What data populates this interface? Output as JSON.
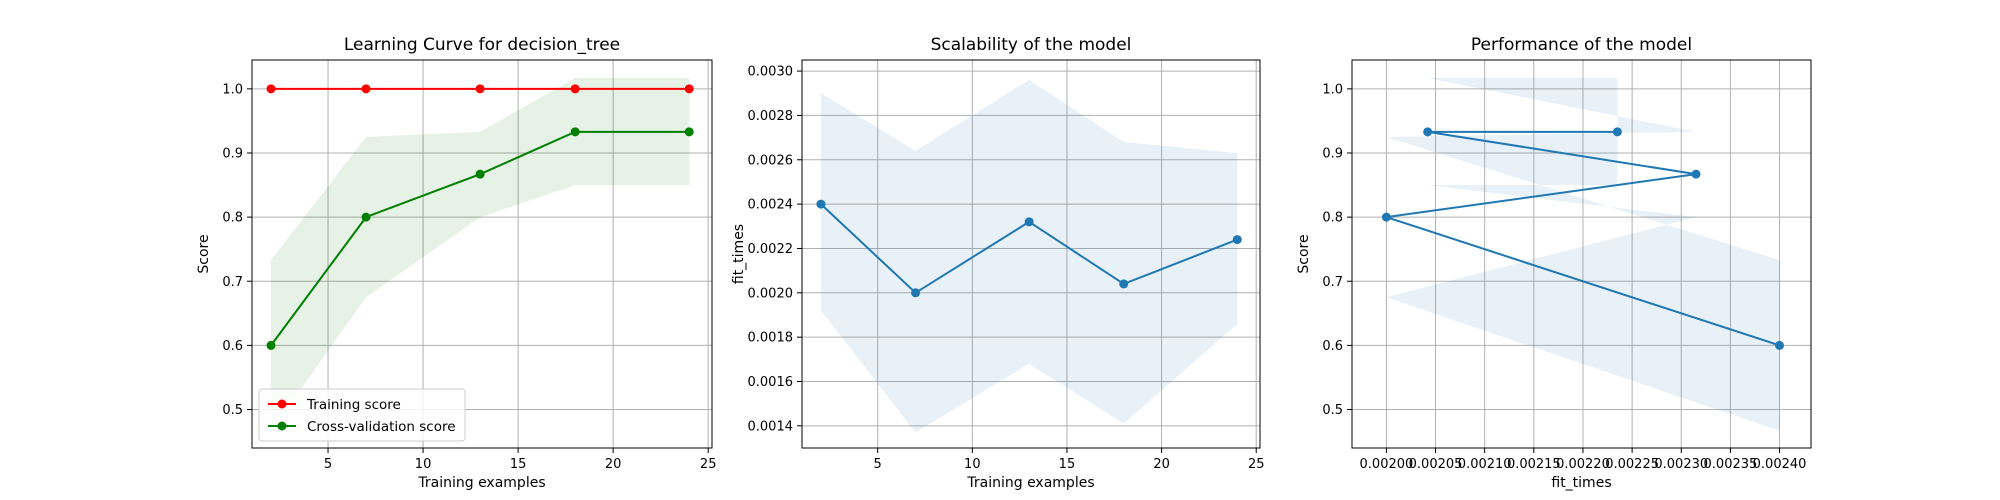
{
  "chart_data": [
    {
      "type": "line",
      "title": "Learning Curve for decision_tree",
      "xlabel": "Training examples",
      "ylabel": "Score",
      "xlim": [
        1,
        25.2
      ],
      "ylim": [
        0.44,
        1.045
      ],
      "xticks": [
        5,
        10,
        15,
        20,
        25
      ],
      "yticks": [
        0.5,
        0.6,
        0.7,
        0.8,
        0.9,
        1.0
      ],
      "grid": true,
      "legend": "lower-left",
      "series": [
        {
          "name": "Training score",
          "color": "#ff0000",
          "x": [
            2,
            7,
            13,
            18,
            24
          ],
          "y": [
            1.0,
            1.0,
            1.0,
            1.0,
            1.0
          ],
          "band_low": [
            1.0,
            1.0,
            1.0,
            1.0,
            1.0
          ],
          "band_high": [
            1.0,
            1.0,
            1.0,
            1.0,
            1.0
          ]
        },
        {
          "name": "Cross-validation score",
          "color": "#008000",
          "x": [
            2,
            7,
            13,
            18,
            24
          ],
          "y": [
            0.6,
            0.8,
            0.867,
            0.933,
            0.933
          ],
          "band_low": [
            0.467,
            0.675,
            0.8,
            0.85,
            0.85
          ],
          "band_high": [
            0.733,
            0.925,
            0.933,
            1.017,
            1.017
          ]
        }
      ]
    },
    {
      "type": "line",
      "title": "Scalability of the model",
      "xlabel": "Training examples",
      "ylabel": "fit_times",
      "xlim": [
        1,
        25.2
      ],
      "ylim": [
        0.0013,
        0.00305
      ],
      "xticks": [
        5,
        10,
        15,
        20,
        25
      ],
      "yticks": [
        0.0014,
        0.0016,
        0.0018,
        0.002,
        0.0022,
        0.0024,
        0.0026,
        0.0028,
        0.003
      ],
      "grid": true,
      "series": [
        {
          "color": "#1f77b4",
          "x": [
            2,
            7,
            13,
            18,
            24
          ],
          "y": [
            0.0024,
            0.002,
            0.00232,
            0.00204,
            0.00224
          ],
          "band_low": [
            0.00192,
            0.00137,
            0.00168,
            0.00141,
            0.00186
          ],
          "band_high": [
            0.0029,
            0.00264,
            0.00296,
            0.00268,
            0.00263
          ]
        }
      ]
    },
    {
      "type": "line",
      "title": "Performance of the model",
      "xlabel": "fit_times",
      "ylabel": "Score",
      "xlim": [
        0.001965,
        0.002432
      ],
      "ylim": [
        0.44,
        1.045
      ],
      "xticks": [
        0.002,
        0.00205,
        0.0021,
        0.00215,
        0.0022,
        0.00225,
        0.0023,
        0.00235,
        0.0024
      ],
      "ytick_values": [
        0.5,
        0.6,
        0.7,
        0.8,
        0.9,
        1.0
      ],
      "grid": true,
      "series": [
        {
          "color": "#1f77b4",
          "x": [
            0.0024,
            0.002,
            0.002315,
            0.002042,
            0.002235
          ],
          "y": [
            0.6,
            0.8,
            0.867,
            0.933,
            0.933
          ],
          "band_low": [
            0.467,
            0.675,
            0.8,
            0.85,
            0.85
          ],
          "band_high": [
            0.733,
            0.925,
            0.933,
            1.017,
            1.017
          ]
        }
      ]
    }
  ]
}
